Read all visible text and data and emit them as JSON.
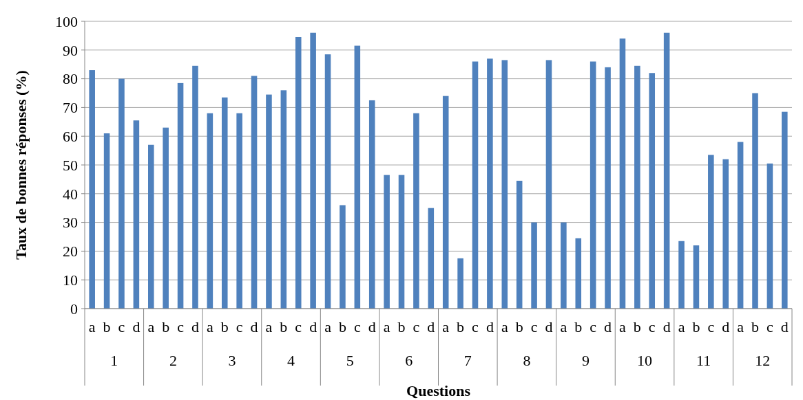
{
  "chart_data": {
    "type": "bar",
    "xlabel": "Questions",
    "ylabel": "Taux de bonnes réponses (%)",
    "categories": [
      "1",
      "2",
      "3",
      "4",
      "5",
      "6",
      "7",
      "8",
      "9",
      "10",
      "11",
      "12"
    ],
    "series": [
      {
        "name": "a",
        "color": "#4f81bd",
        "values": [
          83,
          57,
          68,
          74.5,
          88.5,
          46.5,
          74,
          86.5,
          30,
          94,
          23.5,
          58
        ]
      },
      {
        "name": "b",
        "color": "#4f81bd",
        "values": [
          61,
          63,
          73.5,
          76,
          36,
          46.5,
          17.5,
          44.5,
          24.5,
          84.5,
          22,
          75
        ]
      },
      {
        "name": "c",
        "color": "#4f81bd",
        "values": [
          80,
          78.5,
          68,
          94.5,
          91.5,
          68,
          86,
          30,
          86,
          82,
          53.5,
          50.5
        ]
      },
      {
        "name": "d",
        "color": "#4f81bd",
        "values": [
          65.5,
          84.5,
          81,
          96,
          72.5,
          35,
          87,
          86.5,
          84,
          96,
          52,
          68.5
        ]
      }
    ],
    "ylim": [
      0,
      100
    ],
    "yticks": [
      0,
      10,
      20,
      30,
      40,
      50,
      60,
      70,
      80,
      90,
      100
    ],
    "grid": "y"
  }
}
